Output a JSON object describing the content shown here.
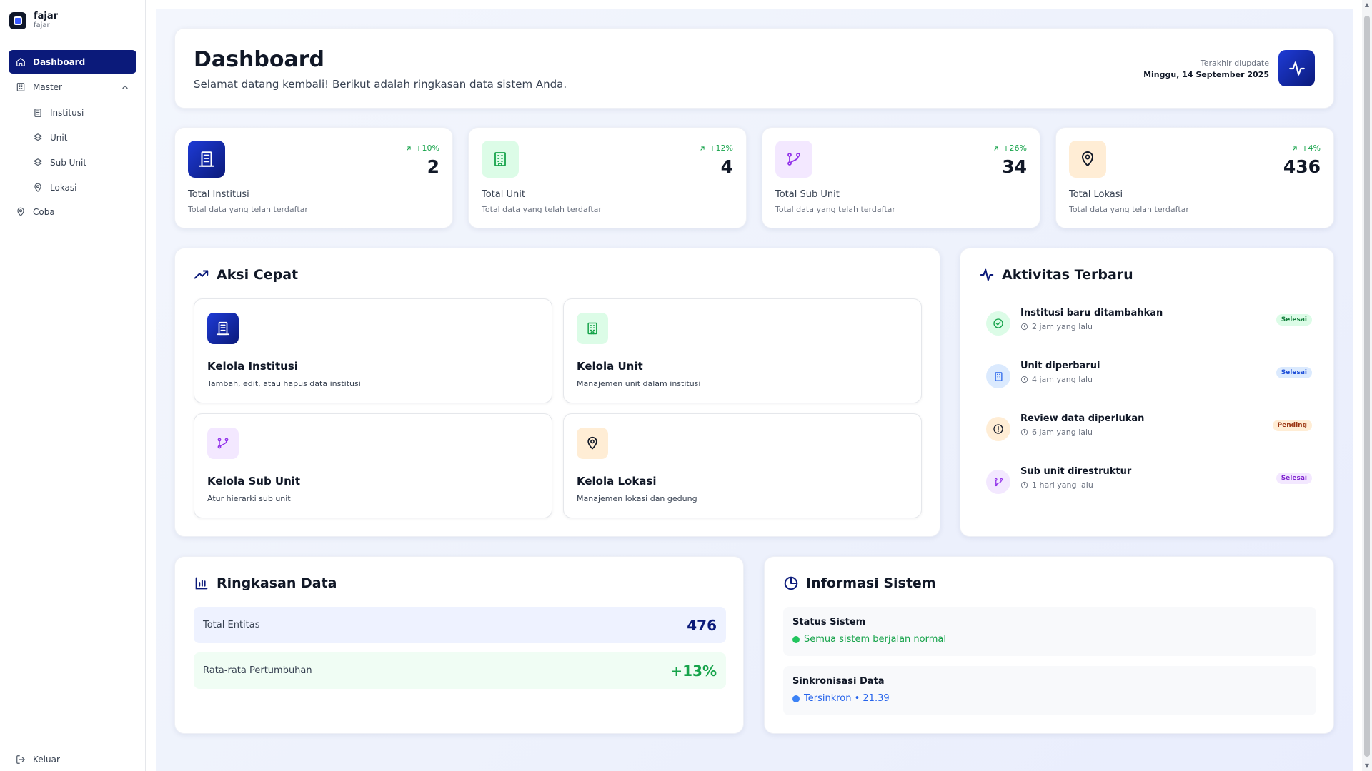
{
  "sidebar": {
    "brand_name": "fajar",
    "brand_sub": "fajar",
    "items": [
      {
        "label": "Dashboard"
      },
      {
        "label": "Master"
      },
      {
        "label": "Institusi"
      },
      {
        "label": "Unit"
      },
      {
        "label": "Sub Unit"
      },
      {
        "label": "Lokasi"
      },
      {
        "label": "Coba"
      }
    ],
    "logout": "Keluar"
  },
  "header": {
    "title": "Dashboard",
    "subtitle": "Selamat datang kembali! Berikut adalah ringkasan data sistem Anda.",
    "updated_label": "Terakhir diupdate",
    "updated_date": "Minggu, 14 September 2025"
  },
  "stats": [
    {
      "label": "Total Institusi",
      "desc": "Total data yang telah terdaftar",
      "value": "2",
      "trend": "+10%",
      "icon": "building-document-icon",
      "color": "#1e3bd6"
    },
    {
      "label": "Total Unit",
      "desc": "Total data yang telah terdaftar",
      "value": "4",
      "trend": "+12%",
      "icon": "building-icon",
      "color": "#16a34a"
    },
    {
      "label": "Total Sub Unit",
      "desc": "Total data yang telah terdaftar",
      "value": "34",
      "trend": "+26%",
      "icon": "git-branch-icon",
      "color": "#9333ea"
    },
    {
      "label": "Total Lokasi",
      "desc": "Total data yang telah terdaftar",
      "value": "436",
      "trend": "+4%",
      "icon": "map-pin-icon",
      "color": "#111827"
    }
  ],
  "quick_actions": {
    "title": "Aksi Cepat",
    "items": [
      {
        "title": "Kelola Institusi",
        "desc": "Tambah, edit, atau hapus data institusi"
      },
      {
        "title": "Kelola Unit",
        "desc": "Manajemen unit dalam institusi"
      },
      {
        "title": "Kelola Sub Unit",
        "desc": "Atur hierarki sub unit"
      },
      {
        "title": "Kelola Lokasi",
        "desc": "Manajemen lokasi dan gedung"
      }
    ]
  },
  "activity": {
    "title": "Aktivitas Terbaru",
    "items": [
      {
        "title": "Institusi baru ditambahkan",
        "time": "2 jam yang lalu",
        "badge": "Selesai",
        "icon": "check-circle-icon"
      },
      {
        "title": "Unit diperbarui",
        "time": "4 jam yang lalu",
        "badge": "Selesai",
        "icon": "building-icon"
      },
      {
        "title": "Review data diperlukan",
        "time": "6 jam yang lalu",
        "badge": "Pending",
        "icon": "alert-circle-icon"
      },
      {
        "title": "Sub unit direstruktur",
        "time": "1 hari yang lalu",
        "badge": "Selesai",
        "icon": "git-branch-icon"
      }
    ]
  },
  "summary": {
    "title": "Ringkasan Data",
    "rows": [
      {
        "label": "Total Entitas",
        "value": "476"
      },
      {
        "label": "Rata-rata Pertumbuhan",
        "value": "+13%"
      }
    ]
  },
  "system_info": {
    "title": "Informasi Sistem",
    "rows": [
      {
        "title": "Status Sistem",
        "status": "Semua sistem berjalan normal"
      },
      {
        "title": "Sinkronisasi Data",
        "status": "Tersinkron • 21.39"
      }
    ]
  },
  "colors": {
    "primary": "#0b1a7a",
    "success": "#16a34a",
    "info": "#2563eb",
    "warning": "#d97706",
    "purple": "#9333ea"
  }
}
